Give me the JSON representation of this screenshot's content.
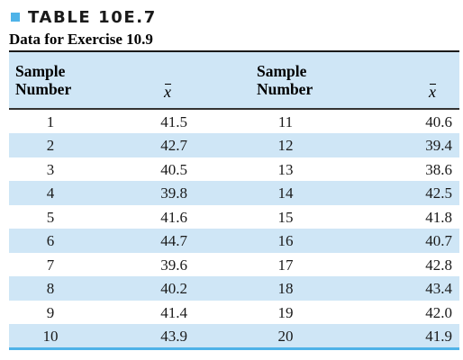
{
  "caption": {
    "number": "TABLE 10E.7",
    "title": "Data for Exercise 10.9"
  },
  "table": {
    "headers": {
      "col1_line1": "Sample",
      "col1_line2": "Number",
      "col2": "x",
      "col3_line1": "Sample",
      "col3_line2": "Number",
      "col4": "x"
    },
    "rows": [
      {
        "n1": "1",
        "x1": "41.5",
        "n2": "11",
        "x2": "40.6"
      },
      {
        "n1": "2",
        "x1": "42.7",
        "n2": "12",
        "x2": "39.4"
      },
      {
        "n1": "3",
        "x1": "40.5",
        "n2": "13",
        "x2": "38.6"
      },
      {
        "n1": "4",
        "x1": "39.8",
        "n2": "14",
        "x2": "42.5"
      },
      {
        "n1": "5",
        "x1": "41.6",
        "n2": "15",
        "x2": "41.8"
      },
      {
        "n1": "6",
        "x1": "44.7",
        "n2": "16",
        "x2": "40.7"
      },
      {
        "n1": "7",
        "x1": "39.6",
        "n2": "17",
        "x2": "42.8"
      },
      {
        "n1": "8",
        "x1": "40.2",
        "n2": "18",
        "x2": "43.4"
      },
      {
        "n1": "9",
        "x1": "41.4",
        "n2": "19",
        "x2": "42.0"
      },
      {
        "n1": "10",
        "x1": "43.9",
        "n2": "20",
        "x2": "41.9"
      }
    ]
  },
  "colors": {
    "accent": "#4fb3e8",
    "shade": "#cfe6f6",
    "text": "#1a1a1a"
  }
}
